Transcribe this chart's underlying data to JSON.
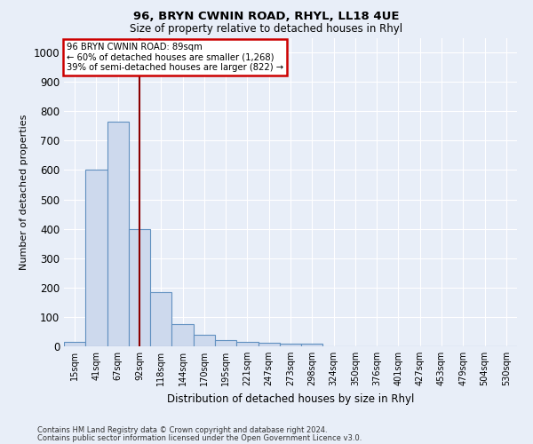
{
  "title": "96, BRYN CWNIN ROAD, RHYL, LL18 4UE",
  "subtitle": "Size of property relative to detached houses in Rhyl",
  "xlabel": "Distribution of detached houses by size in Rhyl",
  "ylabel": "Number of detached properties",
  "bar_labels": [
    "15sqm",
    "41sqm",
    "67sqm",
    "92sqm",
    "118sqm",
    "144sqm",
    "170sqm",
    "195sqm",
    "221sqm",
    "247sqm",
    "273sqm",
    "298sqm",
    "324sqm",
    "350sqm",
    "376sqm",
    "401sqm",
    "427sqm",
    "453sqm",
    "479sqm",
    "504sqm",
    "530sqm"
  ],
  "bar_values": [
    15,
    600,
    765,
    400,
    185,
    75,
    40,
    20,
    15,
    13,
    10,
    8,
    0,
    0,
    0,
    0,
    0,
    0,
    0,
    0,
    0
  ],
  "bar_color": "#cdd9ed",
  "bar_edge_color": "#6090c0",
  "vline_x": 3,
  "vline_color": "#8b0000",
  "annotation_line1": "96 BRYN CWNIN ROAD: 89sqm",
  "annotation_line2": "← 60% of detached houses are smaller (1,268)",
  "annotation_line3": "39% of semi-detached houses are larger (822) →",
  "annotation_box_edge": "#cc0000",
  "ylim": [
    0,
    1050
  ],
  "yticks": [
    0,
    100,
    200,
    300,
    400,
    500,
    600,
    700,
    800,
    900,
    1000
  ],
  "footer_line1": "Contains HM Land Registry data © Crown copyright and database right 2024.",
  "footer_line2": "Contains public sector information licensed under the Open Government Licence v3.0.",
  "background_color": "#e8eef8",
  "plot_bg_color": "#e8eef8",
  "grid_color": "#ffffff"
}
